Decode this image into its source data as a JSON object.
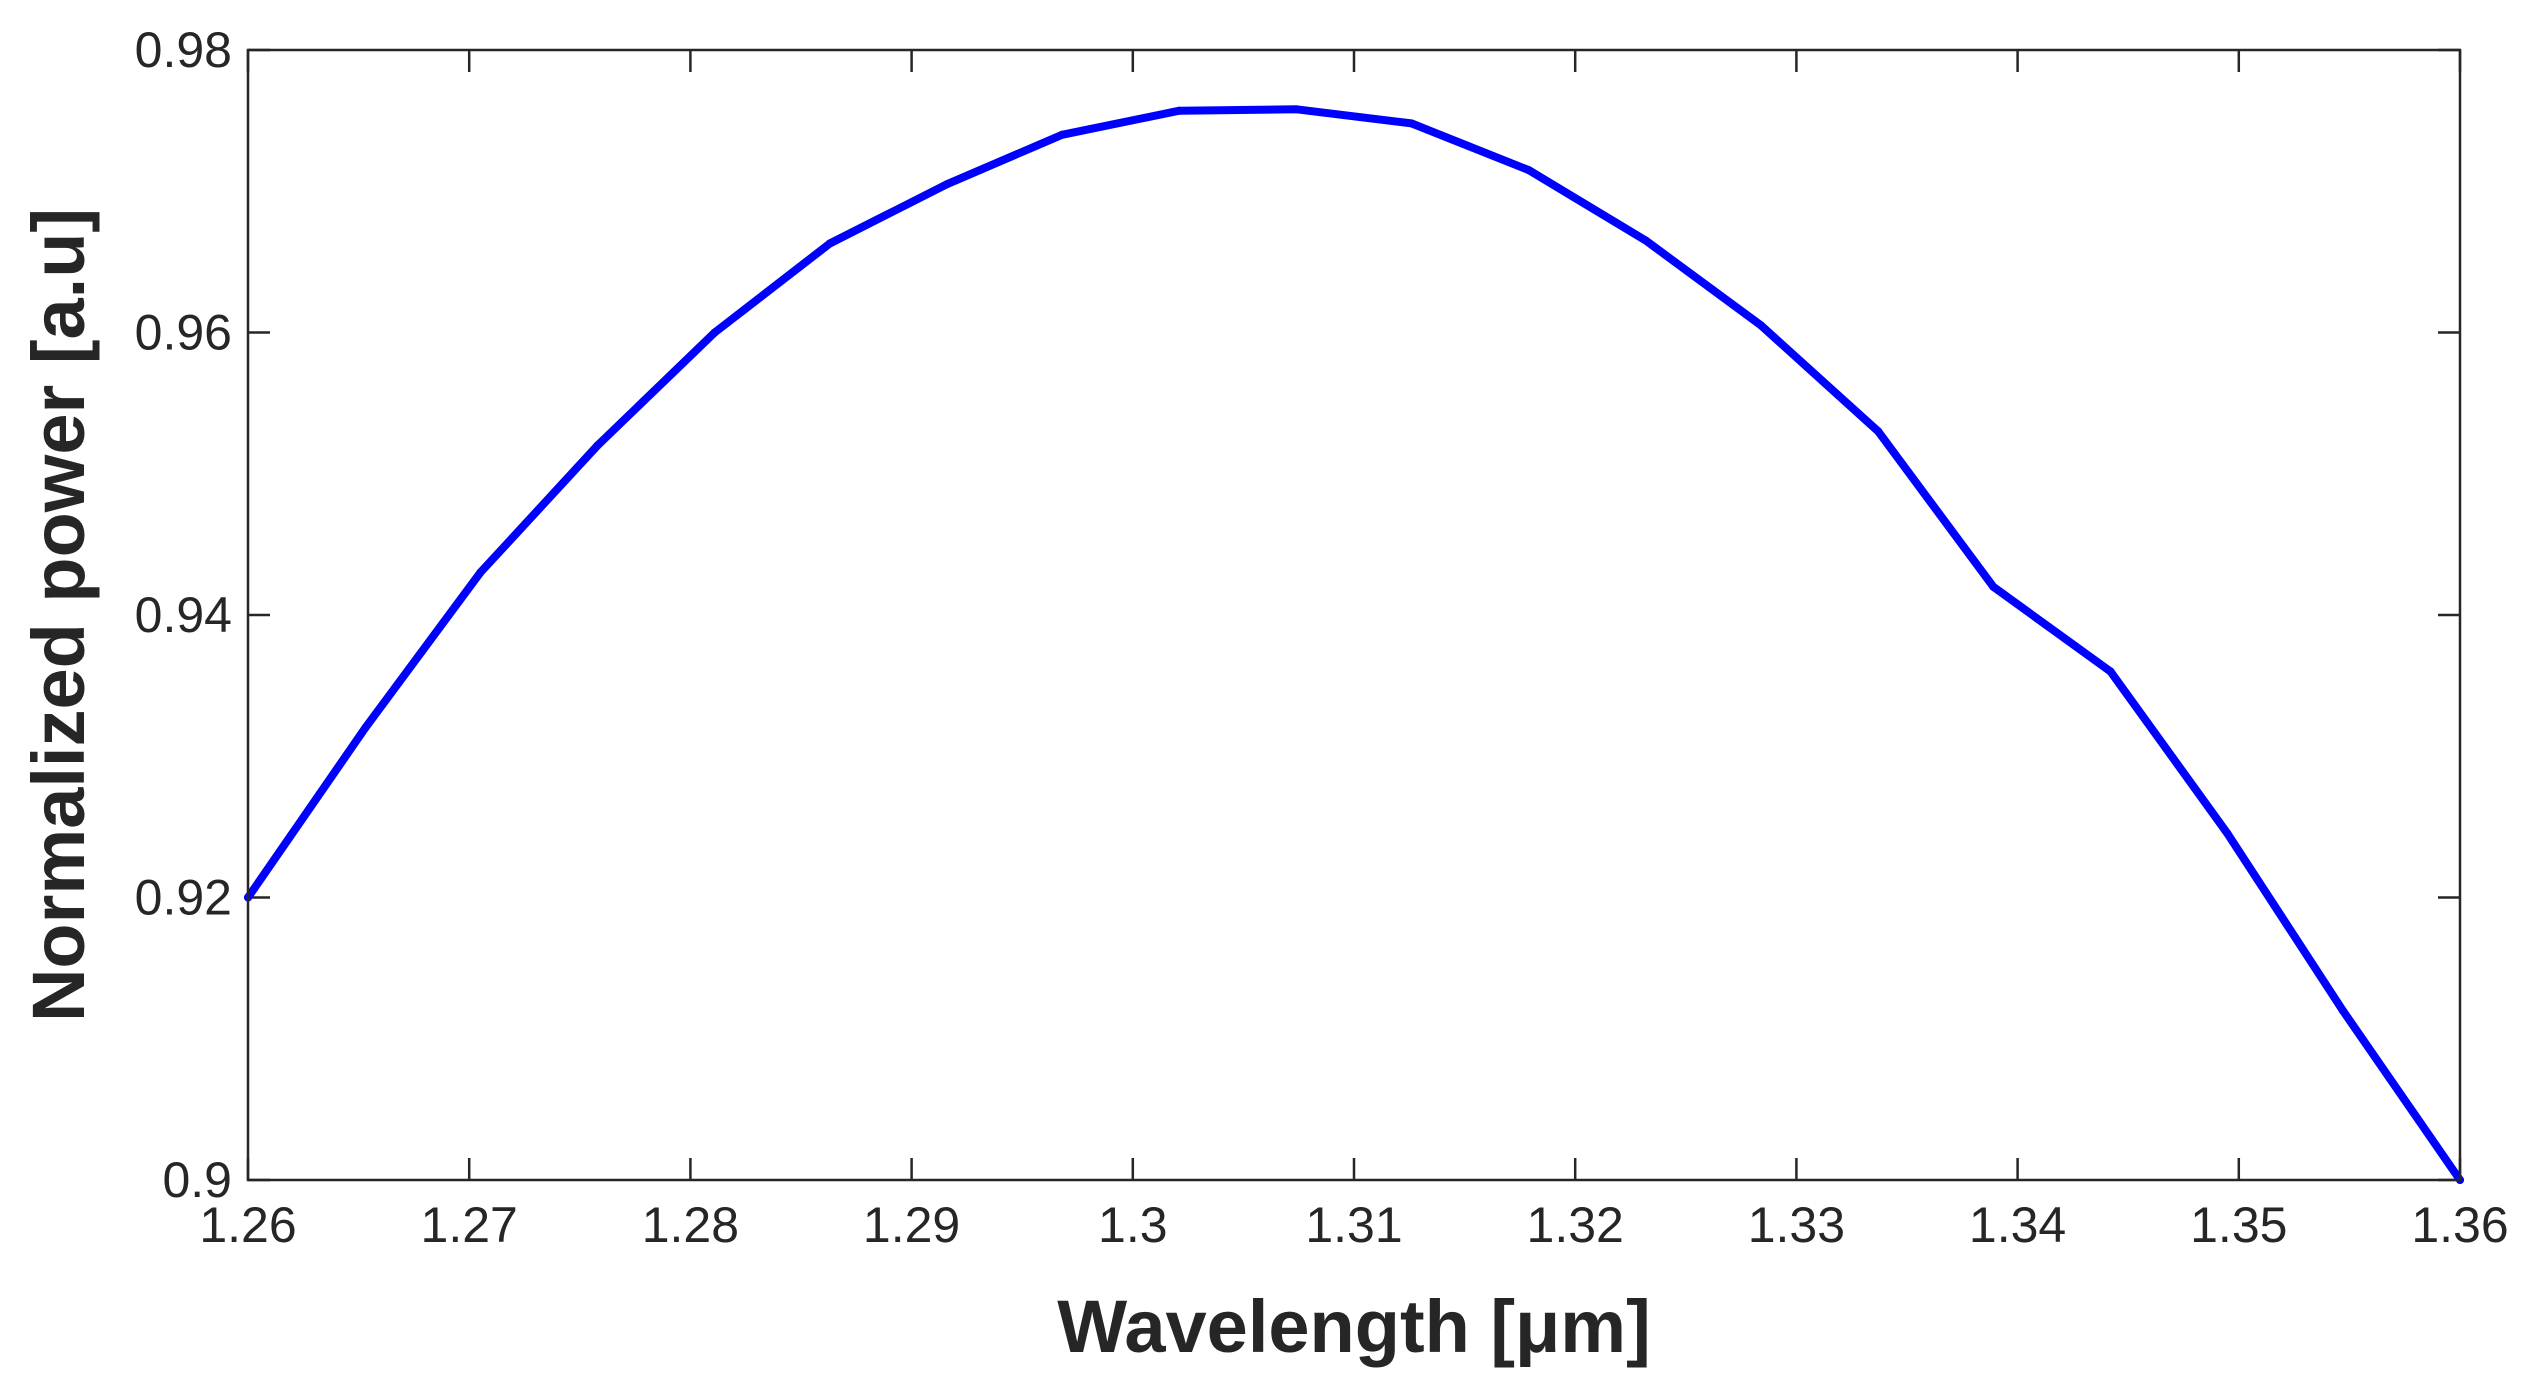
{
  "chart_data": {
    "type": "line",
    "title": "",
    "xlabel": "Wavelength [μm]",
    "ylabel": "Normalized power [a.u]",
    "xlim": [
      1.26,
      1.36
    ],
    "ylim": [
      0.9,
      0.98
    ],
    "x_ticks": [
      "1.26",
      "1.27",
      "1.28",
      "1.29",
      "1.3",
      "1.31",
      "1.32",
      "1.33",
      "1.34",
      "1.35",
      "1.36"
    ],
    "y_ticks": [
      "0.9",
      "0.92",
      "0.94",
      "0.96",
      "0.98"
    ],
    "grid": false,
    "series": [
      {
        "color": "#0000ff",
        "x": [
          1.26,
          1.2653,
          1.2705,
          1.2758,
          1.2811,
          1.2863,
          1.2916,
          1.2968,
          1.3021,
          1.3074,
          1.3126,
          1.3179,
          1.3232,
          1.3284,
          1.3337,
          1.3389,
          1.3442,
          1.3495,
          1.3547,
          1.36
        ],
        "y": [
          0.92,
          0.932,
          0.943,
          0.952,
          0.96,
          0.9663,
          0.9705,
          0.974,
          0.9757,
          0.9758,
          0.9748,
          0.9715,
          0.9665,
          0.9605,
          0.953,
          0.942,
          0.936,
          0.9245,
          0.912,
          0.9
        ]
      }
    ]
  }
}
